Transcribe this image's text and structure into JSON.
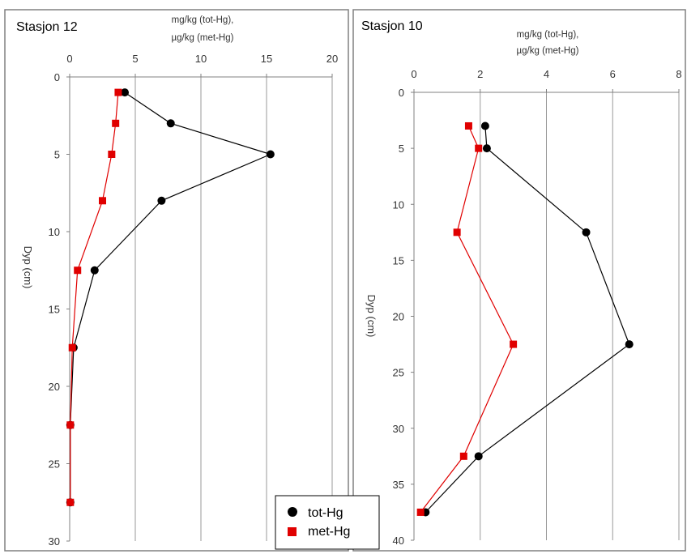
{
  "chart_data": [
    {
      "type": "line",
      "title": "Stasjon 12",
      "xlabel_lines": [
        "mg/kg (tot-Hg),",
        "µg/kg (met-Hg)"
      ],
      "ylabel": "Dyp (cm)",
      "xlim": [
        0,
        20
      ],
      "ylim": [
        0,
        30
      ],
      "y_inverted": true,
      "x_axis_position": "top",
      "xticks": [
        "0",
        "5",
        "10",
        "15",
        "20"
      ],
      "yticks": [
        "0",
        "5",
        "10",
        "15",
        "20",
        "25",
        "30"
      ],
      "grid": "vertical",
      "series": [
        {
          "name": "tot-Hg",
          "color": "#000000",
          "marker": "circle",
          "points": [
            [
              4.2,
              1
            ],
            [
              7.7,
              3
            ],
            [
              15.3,
              5
            ],
            [
              7.0,
              8
            ],
            [
              1.9,
              12.5
            ],
            [
              0.3,
              17.5
            ],
            [
              0.05,
              22.5
            ],
            [
              0.05,
              27.5
            ]
          ]
        },
        {
          "name": "met-Hg",
          "color": "#e00000",
          "marker": "square",
          "points": [
            [
              3.7,
              1
            ],
            [
              3.5,
              3
            ],
            [
              3.2,
              5
            ],
            [
              2.5,
              8
            ],
            [
              0.6,
              12.5
            ],
            [
              0.2,
              17.5
            ],
            [
              0.05,
              22.5
            ],
            [
              0.05,
              27.5
            ]
          ]
        }
      ]
    },
    {
      "type": "line",
      "title": "Stasjon 10",
      "xlabel_lines": [
        "mg/kg (tot-Hg),",
        "µg/kg (met-Hg)"
      ],
      "ylabel": "Dyp (cm)",
      "xlim": [
        0,
        8
      ],
      "ylim": [
        0,
        40
      ],
      "y_inverted": true,
      "x_axis_position": "top",
      "xticks": [
        "0",
        "2",
        "4",
        "6",
        "8"
      ],
      "yticks": [
        "0",
        "5",
        "10",
        "15",
        "20",
        "25",
        "30",
        "35",
        "40"
      ],
      "grid": "vertical",
      "series": [
        {
          "name": "tot-Hg",
          "color": "#000000",
          "marker": "circle",
          "points": [
            [
              2.15,
              3
            ],
            [
              2.2,
              5
            ],
            [
              5.2,
              12.5
            ],
            [
              6.5,
              22.5
            ],
            [
              1.95,
              32.5
            ],
            [
              0.35,
              37.5
            ]
          ]
        },
        {
          "name": "met-Hg",
          "color": "#e00000",
          "marker": "square",
          "points": [
            [
              1.65,
              3
            ],
            [
              1.95,
              5
            ],
            [
              1.3,
              12.5
            ],
            [
              3.0,
              22.5
            ],
            [
              1.5,
              32.5
            ],
            [
              0.2,
              37.5
            ]
          ]
        }
      ]
    }
  ],
  "legend": {
    "position": "bottom-center",
    "items": [
      {
        "label": "tot-Hg",
        "marker": "circle",
        "color": "#000000"
      },
      {
        "label": "met-Hg",
        "marker": "square",
        "color": "#e00000"
      }
    ]
  }
}
